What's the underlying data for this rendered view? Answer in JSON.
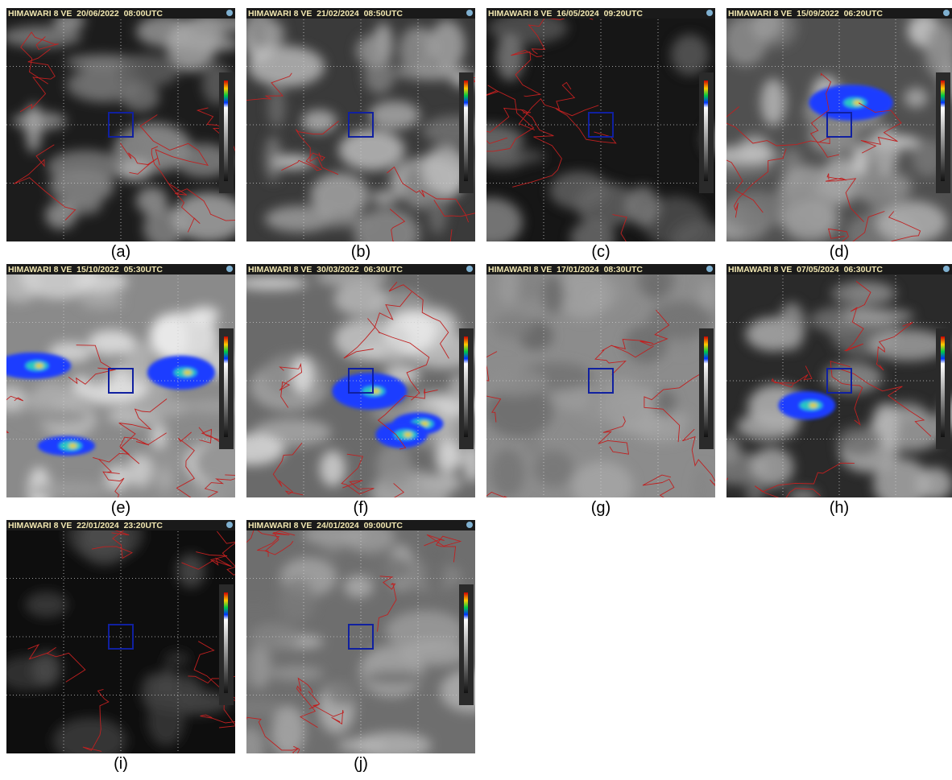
{
  "panels": [
    {
      "header": "HIMAWARI 8 VE  20/06/2022  08:00UTC",
      "caption": "(a)"
    },
    {
      "header": "HIMAWARI 8 VE  21/02/2024  08:50UTC",
      "caption": "(b)"
    },
    {
      "header": "HIMAWARI 8 VE  16/05/2024  09:20UTC",
      "caption": "(c)"
    },
    {
      "header": "HIMAWARI 8 VE  15/09/2022  06:20UTC",
      "caption": "(d)"
    },
    {
      "header": "HIMAWARI 8 VE  15/10/2022  05:30UTC",
      "caption": "(e)"
    },
    {
      "header": "HIMAWARI 8 VE  30/03/2022  06:30UTC",
      "caption": "(f)"
    },
    {
      "header": "HIMAWARI 8 VE  17/01/2024  08:30UTC",
      "caption": "(g)"
    },
    {
      "header": "HIMAWARI 8 VE  07/05/2024  06:30UTC",
      "caption": "(h)"
    },
    {
      "header": "HIMAWARI 8 VE  22/01/2024  23:20UTC",
      "caption": "(i)"
    },
    {
      "header": "HIMAWARI 8 VE  24/01/2024  09:00UTC",
      "caption": "(j)"
    }
  ]
}
